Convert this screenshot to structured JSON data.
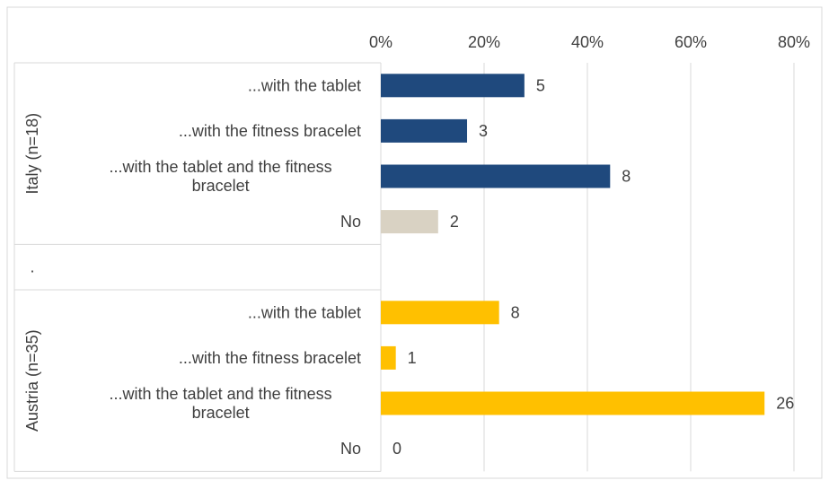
{
  "chart_data": {
    "type": "bar",
    "orientation": "horizontal",
    "x_axis": {
      "position": "top",
      "range": [
        0,
        80
      ],
      "ticks": [
        0,
        20,
        40,
        60,
        80
      ],
      "tick_labels": [
        "0%",
        "20%",
        "40%",
        "60%",
        "80%"
      ],
      "grid": true
    },
    "groups": [
      {
        "label": "Italy (n=18)",
        "rows": [
          {
            "label": "...with the tablet",
            "percent": 27.8,
            "count": "5",
            "color": "#1f497d"
          },
          {
            "label": "...with the fitness bracelet",
            "percent": 16.7,
            "count": "3",
            "color": "#1f497d"
          },
          {
            "label": "...with the tablet and the fitness bracelet",
            "percent": 44.4,
            "count": "8",
            "color": "#1f497d"
          },
          {
            "label": "No",
            "percent": 11.1,
            "count": "2",
            "color": "#d9d2c3"
          }
        ]
      },
      {
        "label": ".",
        "rows": [
          {
            "label": "",
            "percent": 0,
            "count": "",
            "color": "#ffffff"
          }
        ]
      },
      {
        "label": "Austria (n=35)",
        "rows": [
          {
            "label": "...with the tablet",
            "percent": 22.9,
            "count": "8",
            "color": "#ffc000"
          },
          {
            "label": "...with the fitness bracelet",
            "percent": 2.9,
            "count": "1",
            "color": "#ffc000"
          },
          {
            "label": "...with the tablet and the fitness bracelet",
            "percent": 74.3,
            "count": "26",
            "color": "#ffc000"
          },
          {
            "label": "No",
            "percent": 0,
            "count": "0",
            "color": "#ffc000"
          }
        ]
      }
    ],
    "legend": "none"
  }
}
